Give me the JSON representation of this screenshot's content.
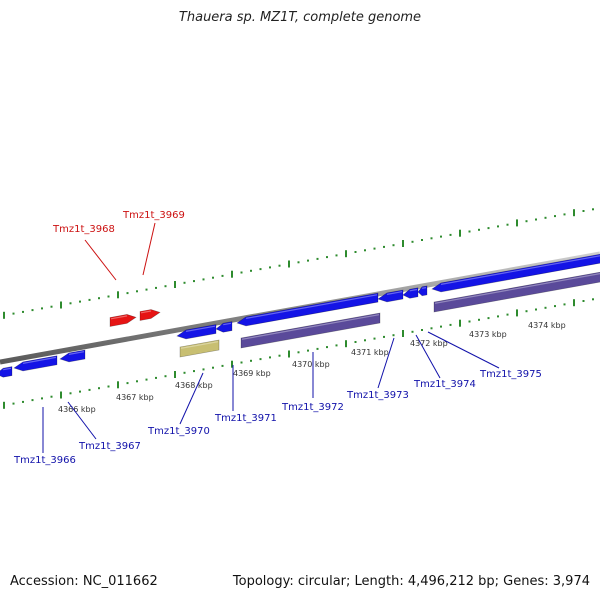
{
  "title": "Thauera sp. MZ1T, complete genome",
  "footer": {
    "accession": "Accession: NC_011662",
    "topology": "Topology: circular; Length: 4,496,212 bp; Genes: 3,974"
  },
  "colors": {
    "backbone": "#8a8a8a",
    "tick": "#2e8b2e",
    "forward_gene": "#1414e6",
    "reverse_gene": "#1414e6",
    "rna_gene": "#e61414",
    "cds_feature": "#5a4a9a",
    "misc_feature": "#c8bf72",
    "forward_label": "#cc1111",
    "reverse_label": "#1111aa"
  },
  "kbp_labels": [
    "4366 kbp",
    "4367 kbp",
    "4368 kbp",
    "4369 kbp",
    "4370 kbp",
    "4371 kbp",
    "4372 kbp",
    "4373 kbp",
    "4374 kbp"
  ],
  "genes": [
    {
      "locus": "Tmz1t_3966",
      "strand": "reverse"
    },
    {
      "locus": "Tmz1t_3967",
      "strand": "reverse"
    },
    {
      "locus": "Tmz1t_3968",
      "strand": "forward"
    },
    {
      "locus": "Tmz1t_3969",
      "strand": "forward"
    },
    {
      "locus": "Tmz1t_3970",
      "strand": "reverse"
    },
    {
      "locus": "Tmz1t_3971",
      "strand": "reverse"
    },
    {
      "locus": "Tmz1t_3972",
      "strand": "reverse"
    },
    {
      "locus": "Tmz1t_3973",
      "strand": "reverse"
    },
    {
      "locus": "Tmz1t_3974",
      "strand": "reverse"
    },
    {
      "locus": "Tmz1t_3975",
      "strand": "reverse"
    }
  ]
}
